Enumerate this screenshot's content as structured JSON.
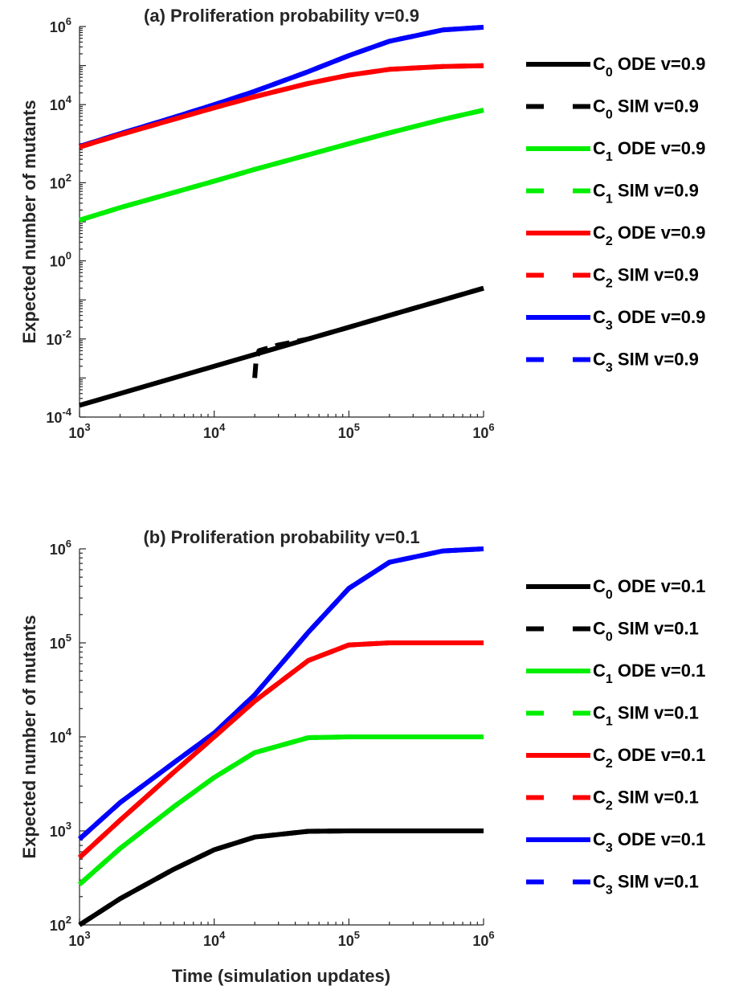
{
  "figure": {
    "xlabel": "Time (simulation updates)"
  },
  "colors": {
    "C0": "#000000",
    "C1": "#00ee00",
    "C2": "#ff0000",
    "C3": "#0000ff"
  },
  "chart_data": [
    {
      "type": "line",
      "title": "(a) Proliferation probability v=0.9",
      "ylabel": "Expected number of mutants",
      "xlabel": "",
      "xscale": "log",
      "yscale": "log",
      "xlim": [
        1000,
        1000000
      ],
      "ylim": [
        0.0001,
        1000000
      ],
      "x_ticks": [
        "10^3",
        "10^4",
        "10^5",
        "10^6"
      ],
      "y_ticks": [
        "10^-4",
        "10^-2",
        "10^0",
        "10^2",
        "10^4",
        "10^6"
      ],
      "legend_position": "right",
      "x": [
        1000,
        2000,
        5000,
        10000,
        20000,
        50000,
        100000,
        200000,
        500000,
        1000000
      ],
      "series": [
        {
          "name": "C0 ODE v=0.9",
          "color_key": "C0",
          "style": "solid",
          "values": [
            0.0002,
            0.0004,
            0.001,
            0.002,
            0.004,
            0.01,
            0.02,
            0.04,
            0.1,
            0.2
          ]
        },
        {
          "name": "C0 SIM v=0.9",
          "color_key": "C0",
          "style": "dashed",
          "x": [
            20000,
            20500,
            21500,
            30000,
            50000,
            100000,
            200000,
            500000,
            1000000
          ],
          "values": [
            0.001,
            0.003,
            0.005,
            0.007,
            0.01,
            0.02,
            0.04,
            0.1,
            0.2
          ]
        },
        {
          "name": "C1 ODE v=0.9",
          "color_key": "C1",
          "style": "solid",
          "values": [
            11,
            23,
            56,
            110,
            220,
            520,
            1000,
            1900,
            4200,
            7200
          ]
        },
        {
          "name": "C1 SIM v=0.9",
          "color_key": "C1",
          "style": "dashed",
          "values": [
            11,
            23,
            56,
            110,
            220,
            520,
            1000,
            1900,
            4200,
            7200
          ]
        },
        {
          "name": "C2 ODE v=0.9",
          "color_key": "C2",
          "style": "solid",
          "values": [
            820,
            1700,
            4200,
            8300,
            16000,
            35000,
            57000,
            80000,
            95000,
            99000
          ]
        },
        {
          "name": "C2 SIM v=0.9",
          "color_key": "C2",
          "style": "dashed",
          "values": [
            820,
            1700,
            4200,
            8300,
            16000,
            35000,
            57000,
            80000,
            95000,
            99000
          ]
        },
        {
          "name": "C3 ODE v=0.9",
          "color_key": "C3",
          "style": "solid",
          "values": [
            850,
            1800,
            4700,
            10000,
            22000,
            70000,
            180000,
            420000,
            820000,
            960000
          ]
        },
        {
          "name": "C3 SIM v=0.9",
          "color_key": "C3",
          "style": "dashed",
          "values": [
            850,
            1800,
            4700,
            10000,
            22000,
            70000,
            180000,
            420000,
            820000,
            960000
          ]
        }
      ]
    },
    {
      "type": "line",
      "title": "(b) Proliferation probability v=0.1",
      "ylabel": "Expected number of mutants",
      "xlabel": "Time (simulation updates)",
      "xscale": "log",
      "yscale": "log",
      "xlim": [
        1000,
        1000000
      ],
      "ylim": [
        100,
        1000000
      ],
      "x_ticks": [
        "10^3",
        "10^4",
        "10^5",
        "10^6"
      ],
      "y_ticks": [
        "10^2",
        "10^3",
        "10^4",
        "10^5",
        "10^6"
      ],
      "legend_position": "right",
      "x": [
        1000,
        2000,
        5000,
        10000,
        20000,
        50000,
        100000,
        200000,
        500000,
        1000000
      ],
      "series": [
        {
          "name": "C0 ODE v=0.1",
          "color_key": "C0",
          "style": "solid",
          "values": [
            100,
            190,
            390,
            630,
            860,
            990,
            1000,
            1000,
            1000,
            1000
          ]
        },
        {
          "name": "C0 SIM v=0.1",
          "color_key": "C0",
          "style": "dashed",
          "values": [
            100,
            190,
            390,
            630,
            860,
            990,
            1000,
            1000,
            1000,
            1000
          ]
        },
        {
          "name": "C1 ODE v=0.1",
          "color_key": "C1",
          "style": "solid",
          "values": [
            270,
            650,
            1800,
            3700,
            6800,
            9800,
            10000,
            10000,
            10000,
            10000
          ]
        },
        {
          "name": "C1 SIM v=0.1",
          "color_key": "C1",
          "style": "dashed",
          "values": [
            270,
            650,
            1800,
            3700,
            6800,
            9800,
            10000,
            10000,
            10000,
            10000
          ]
        },
        {
          "name": "C2 ODE v=0.1",
          "color_key": "C2",
          "style": "solid",
          "values": [
            520,
            1300,
            4200,
            10000,
            24000,
            65000,
            95000,
            100000,
            100000,
            100000
          ]
        },
        {
          "name": "C2 SIM v=0.1",
          "color_key": "C2",
          "style": "dashed",
          "values": [
            520,
            1300,
            4200,
            10000,
            24000,
            65000,
            95000,
            100000,
            100000,
            100000
          ]
        },
        {
          "name": "C3 ODE v=0.1",
          "color_key": "C3",
          "style": "solid",
          "values": [
            820,
            2000,
            5300,
            11000,
            28000,
            130000,
            380000,
            720000,
            950000,
            1000000
          ]
        },
        {
          "name": "C3 SIM v=0.1",
          "color_key": "C3",
          "style": "dashed",
          "values": [
            820,
            2000,
            5300,
            11000,
            28000,
            130000,
            380000,
            720000,
            950000,
            1000000
          ]
        }
      ]
    }
  ]
}
